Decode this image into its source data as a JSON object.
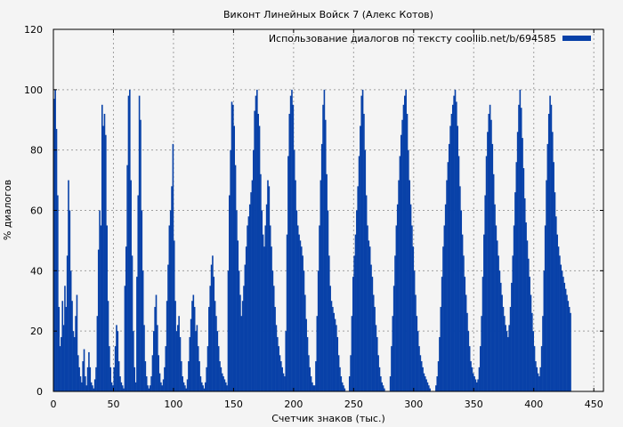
{
  "chart_data": {
    "type": "bar",
    "title": "Виконт Линейных Войск 7 (Алекс Котов)",
    "xlabel": "Счетчик знаков (тыс.)",
    "ylabel": "% диалогов",
    "xlim": [
      0,
      458
    ],
    "ylim": [
      0,
      120
    ],
    "x_ticks": [
      0,
      50,
      100,
      150,
      200,
      250,
      300,
      350,
      400,
      450
    ],
    "y_ticks": [
      0,
      20,
      40,
      60,
      80,
      100,
      120
    ],
    "grid": true,
    "legend_position": "top-right",
    "bar_color": "#0841a8",
    "series": [
      {
        "name": "Использование диалогов по тексту coollib.net/b/694585",
        "color": "#0841a8",
        "x_start": 0,
        "x_step": 1,
        "values": [
          97,
          100,
          87,
          65,
          28,
          15,
          18,
          30,
          22,
          35,
          28,
          45,
          70,
          60,
          40,
          30,
          20,
          18,
          25,
          32,
          12,
          8,
          5,
          3,
          10,
          14,
          5,
          2,
          8,
          13,
          8,
          3,
          2,
          1,
          4,
          8,
          25,
          47,
          60,
          55,
          95,
          88,
          92,
          85,
          55,
          30,
          15,
          8,
          3,
          2,
          8,
          15,
          22,
          20,
          10,
          5,
          3,
          2,
          1,
          35,
          48,
          75,
          98,
          100,
          70,
          45,
          20,
          8,
          3,
          38,
          65,
          98,
          90,
          60,
          40,
          22,
          10,
          5,
          2,
          1,
          2,
          5,
          12,
          20,
          28,
          32,
          22,
          12,
          6,
          3,
          2,
          4,
          8,
          15,
          30,
          42,
          55,
          60,
          68,
          82,
          50,
          30,
          20,
          22,
          25,
          18,
          10,
          5,
          3,
          2,
          1,
          4,
          10,
          18,
          24,
          30,
          32,
          28,
          20,
          22,
          15,
          10,
          5,
          3,
          2,
          1,
          3,
          8,
          15,
          28,
          35,
          42,
          45,
          38,
          30,
          25,
          20,
          15,
          10,
          8,
          6,
          5,
          4,
          3,
          2,
          40,
          65,
          80,
          96,
          95,
          88,
          75,
          60,
          50,
          40,
          32,
          25,
          30,
          35,
          42,
          48,
          55,
          58,
          62,
          66,
          70,
          80,
          93,
          98,
          100,
          92,
          88,
          72,
          60,
          52,
          48,
          55,
          62,
          70,
          68,
          55,
          48,
          40,
          35,
          28,
          22,
          18,
          15,
          12,
          10,
          8,
          6,
          5,
          20,
          52,
          78,
          92,
          98,
          100,
          95,
          80,
          70,
          60,
          55,
          52,
          50,
          48,
          45,
          40,
          32,
          24,
          18,
          12,
          8,
          5,
          3,
          2,
          2,
          10,
          25,
          40,
          55,
          70,
          82,
          95,
          100,
          90,
          72,
          60,
          45,
          35,
          30,
          28,
          26,
          24,
          22,
          18,
          12,
          8,
          5,
          3,
          2,
          1,
          0,
          0,
          0,
          5,
          12,
          25,
          38,
          45,
          52,
          60,
          68,
          78,
          88,
          98,
          100,
          92,
          80,
          65,
          55,
          50,
          48,
          42,
          38,
          32,
          28,
          22,
          18,
          12,
          8,
          5,
          3,
          2,
          1,
          0,
          0,
          0,
          0,
          5,
          15,
          25,
          35,
          45,
          55,
          62,
          70,
          78,
          85,
          90,
          95,
          98,
          100,
          92,
          80,
          70,
          62,
          55,
          48,
          40,
          32,
          25,
          20,
          15,
          12,
          10,
          8,
          6,
          5,
          4,
          3,
          2,
          1,
          0,
          0,
          0,
          0,
          2,
          5,
          10,
          18,
          28,
          38,
          48,
          55,
          62,
          70,
          76,
          82,
          88,
          92,
          95,
          98,
          100,
          96,
          88,
          78,
          68,
          60,
          52,
          45,
          38,
          32,
          26,
          20,
          15,
          10,
          8,
          6,
          5,
          4,
          3,
          4,
          8,
          15,
          25,
          38,
          52,
          65,
          78,
          86,
          92,
          95,
          90,
          82,
          72,
          62,
          55,
          50,
          45,
          40,
          36,
          32,
          28,
          25,
          22,
          20,
          18,
          22,
          28,
          36,
          45,
          55,
          66,
          76,
          86,
          95,
          100,
          94,
          84,
          74,
          64,
          56,
          50,
          44,
          38,
          32,
          26,
          20,
          15,
          10,
          8,
          6,
          5,
          8,
          15,
          25,
          40,
          55,
          70,
          82,
          92,
          98,
          95,
          86,
          76,
          66,
          58,
          52,
          48,
          45,
          42,
          40,
          38,
          36,
          34,
          32,
          30,
          28,
          26
        ]
      }
    ]
  }
}
